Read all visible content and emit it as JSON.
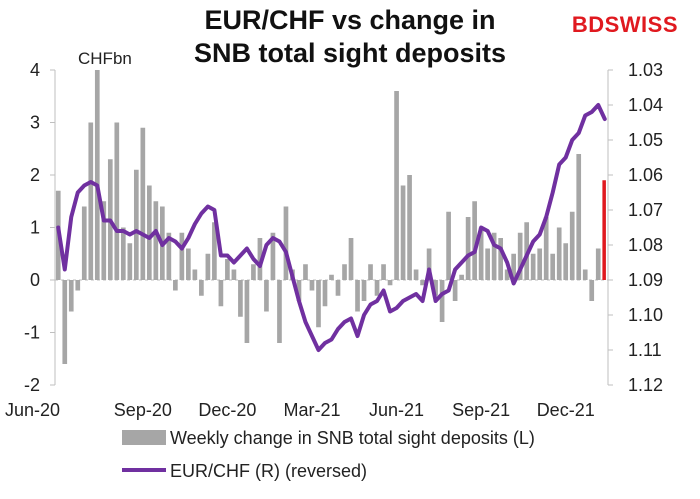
{
  "title_line1": "EUR/CHF vs change in",
  "title_line2": "SNB total sight deposits",
  "brand": "BDSWISS",
  "chart_data": {
    "type": "bar+line",
    "left_unit": "CHFbn",
    "left_axis": {
      "ylim": [
        -2,
        4
      ],
      "ticks": [
        "-2",
        "-1",
        "0",
        "1",
        "2",
        "3",
        "4"
      ]
    },
    "right_axis": {
      "ylim": [
        1.03,
        1.12
      ],
      "reversed": true,
      "ticks": [
        "1.03",
        "1.04",
        "1.05",
        "1.06",
        "1.07",
        "1.08",
        "1.09",
        "1.10",
        "1.11",
        "1.12"
      ]
    },
    "x_tick_labels": [
      "Jun-20",
      "Sep-20",
      "Dec-20",
      "Mar-21",
      "Jun-21",
      "Sep-21",
      "Dec-21"
    ],
    "x_tick_weeks": [
      0,
      13,
      26,
      39,
      52,
      65,
      78
    ],
    "series": [
      {
        "name": "Weekly change in SNB total sight deposits (L)",
        "kind": "bar",
        "color": "#a6a6a6",
        "values": [
          1.7,
          -1.6,
          -0.6,
          -0.2,
          1.4,
          3.0,
          4.0,
          1.5,
          2.3,
          3.0,
          1.0,
          0.7,
          2.1,
          2.9,
          1.8,
          1.5,
          1.4,
          0.9,
          -0.2,
          0.9,
          0.6,
          0.2,
          -0.3,
          0.5,
          1.1,
          -0.5,
          0.4,
          0.2,
          -0.7,
          -1.2,
          0.3,
          0.8,
          -0.6,
          0.9,
          -1.2,
          1.4,
          0.2,
          -0.4,
          0.3,
          -0.2,
          -0.9,
          -0.5,
          0.1,
          -0.3,
          0.3,
          0.8,
          -0.6,
          -0.4,
          0.3,
          -0.3,
          0.3,
          -0.1,
          3.6,
          1.8,
          2.0,
          0.2,
          -0.1,
          0.6,
          -0.3,
          -0.8,
          1.3,
          -0.4,
          0.1,
          1.2,
          1.5,
          1.0,
          0.6,
          0.9,
          0.8,
          0.2,
          0.5,
          0.9,
          1.1,
          0.5,
          0.6,
          1.2,
          0.5,
          1.0,
          0.7,
          1.3,
          2.4,
          0.2,
          -0.4,
          0.6,
          1.9
        ],
        "highlight_last_color": "#e0191f"
      },
      {
        "name": "EUR/CHF (R) (reversed)",
        "kind": "line",
        "color": "#7030a0",
        "values": [
          1.075,
          1.087,
          1.072,
          1.065,
          1.063,
          1.062,
          1.063,
          1.073,
          1.073,
          1.076,
          1.076,
          1.077,
          1.076,
          1.077,
          1.078,
          1.076,
          1.08,
          1.078,
          1.079,
          1.081,
          1.078,
          1.074,
          1.071,
          1.069,
          1.07,
          1.083,
          1.083,
          1.085,
          1.083,
          1.081,
          1.084,
          1.086,
          1.08,
          1.078,
          1.079,
          1.082,
          1.089,
          1.096,
          1.102,
          1.106,
          1.11,
          1.108,
          1.107,
          1.104,
          1.102,
          1.101,
          1.106,
          1.1,
          1.097,
          1.096,
          1.093,
          1.099,
          1.098,
          1.096,
          1.095,
          1.094,
          1.096,
          1.087,
          1.096,
          1.094,
          1.093,
          1.087,
          1.085,
          1.083,
          1.082,
          1.075,
          1.076,
          1.08,
          1.081,
          1.085,
          1.091,
          1.087,
          1.083,
          1.079,
          1.077,
          1.072,
          1.065,
          1.057,
          1.055,
          1.05,
          1.048,
          1.043,
          1.042,
          1.04,
          1.044
        ]
      }
    ],
    "legend_position": "bottom",
    "grid": false
  }
}
